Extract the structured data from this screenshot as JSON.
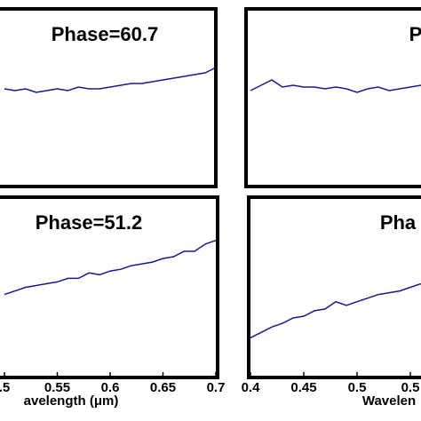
{
  "chart_data": [
    {
      "type": "line",
      "title": "Phase=60.7",
      "x": [
        0.5,
        0.51,
        0.52,
        0.53,
        0.54,
        0.55,
        0.56,
        0.57,
        0.58,
        0.59,
        0.6,
        0.61,
        0.62,
        0.63,
        0.64,
        0.65,
        0.66,
        0.67,
        0.68,
        0.69,
        0.7
      ],
      "series": [
        {
          "color": "#1a1a8c",
          "values": [
            0.55,
            0.54,
            0.55,
            0.53,
            0.54,
            0.55,
            0.54,
            0.56,
            0.55,
            0.55,
            0.56,
            0.57,
            0.58,
            0.58,
            0.59,
            0.6,
            0.61,
            0.62,
            0.63,
            0.64,
            0.67
          ]
        }
      ],
      "xlim": [
        0.5,
        0.7
      ],
      "ylim": [
        0,
        1
      ]
    },
    {
      "type": "line",
      "title": "P",
      "x": [
        0.4,
        0.41,
        0.42,
        0.43,
        0.44,
        0.45,
        0.46,
        0.47,
        0.48,
        0.49,
        0.5,
        0.51,
        0.52,
        0.53,
        0.54,
        0.55,
        0.56
      ],
      "series": [
        {
          "color": "#1a1a8c",
          "values": [
            0.54,
            0.57,
            0.6,
            0.56,
            0.57,
            0.56,
            0.56,
            0.55,
            0.56,
            0.55,
            0.53,
            0.55,
            0.56,
            0.54,
            0.55,
            0.56,
            0.57
          ]
        }
      ],
      "xlim": [
        0.4,
        0.56
      ],
      "ylim": [
        0,
        1
      ]
    },
    {
      "type": "line",
      "title": "Phase=51.2",
      "x": [
        0.5,
        0.51,
        0.52,
        0.53,
        0.54,
        0.55,
        0.56,
        0.57,
        0.58,
        0.59,
        0.6,
        0.61,
        0.62,
        0.63,
        0.64,
        0.65,
        0.66,
        0.67,
        0.68,
        0.69,
        0.7
      ],
      "series": [
        {
          "color": "#1a1a8c",
          "values": [
            0.46,
            0.48,
            0.5,
            0.51,
            0.52,
            0.53,
            0.55,
            0.55,
            0.58,
            0.57,
            0.59,
            0.6,
            0.62,
            0.63,
            0.64,
            0.66,
            0.67,
            0.7,
            0.7,
            0.74,
            0.76
          ]
        }
      ],
      "xlim": [
        0.5,
        0.7
      ],
      "ylim": [
        0,
        1
      ],
      "xlabel": "avelength (μm)",
      "xticks": [
        {
          "value": 0.5,
          "label": ".5"
        },
        0.55,
        0.6,
        0.65,
        0.7
      ]
    },
    {
      "type": "line",
      "title": "Pha",
      "x": [
        0.4,
        0.41,
        0.42,
        0.43,
        0.44,
        0.45,
        0.46,
        0.47,
        0.48,
        0.49,
        0.5,
        0.51,
        0.52,
        0.53,
        0.54,
        0.55,
        0.56
      ],
      "series": [
        {
          "color": "#1a1a8c",
          "values": [
            0.22,
            0.25,
            0.28,
            0.3,
            0.33,
            0.34,
            0.37,
            0.38,
            0.42,
            0.4,
            0.42,
            0.44,
            0.46,
            0.47,
            0.48,
            0.5,
            0.52
          ]
        }
      ],
      "xlim": [
        0.4,
        0.56
      ],
      "ylim": [
        0,
        1
      ],
      "xlabel": "Wavelen",
      "xticks": [
        0.4,
        0.45,
        0.5,
        {
          "value": 0.55,
          "label": "0.5"
        }
      ]
    }
  ]
}
